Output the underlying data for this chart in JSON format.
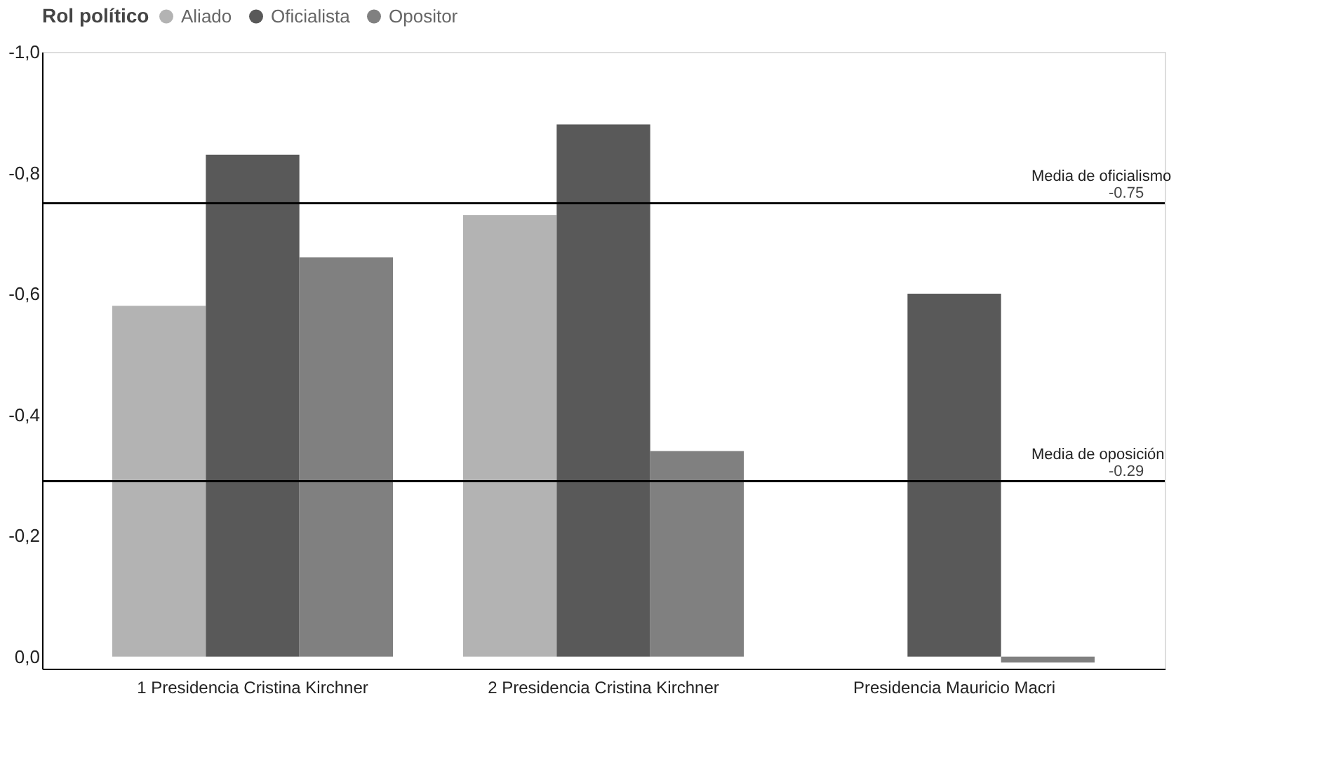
{
  "chart_data": {
    "type": "bar",
    "categories": [
      "1 Presidencia Cristina Kirchner",
      "2 Presidencia Cristina Kirchner",
      "Presidencia Mauricio Macri"
    ],
    "series": [
      {
        "name": "Aliado",
        "color": "#b3b3b3",
        "values": [
          -0.58,
          -0.73,
          null
        ]
      },
      {
        "name": "Oficialista",
        "color": "#595959",
        "values": [
          -0.83,
          -0.88,
          -0.6
        ]
      },
      {
        "name": "Opositor",
        "color": "#808080",
        "values": [
          -0.66,
          -0.34,
          0.01
        ]
      }
    ],
    "legend_title": "Rol político",
    "legend": "top",
    "ylim": [
      0.02,
      -1.0
    ],
    "yticks": [
      {
        "value": 0,
        "label": "0,0"
      },
      {
        "value": -0.2,
        "label": "-0,2"
      },
      {
        "value": -0.4,
        "label": "-0,4"
      },
      {
        "value": -0.6,
        "label": "-0,6"
      },
      {
        "value": -0.8,
        "label": "-0,8"
      },
      {
        "value": -1.0,
        "label": "-1,0"
      }
    ],
    "grid": false,
    "ref_lines": [
      {
        "axis": "y",
        "value": -0.75,
        "label": "Media de oficialismo",
        "color": "#000000"
      },
      {
        "axis": "y",
        "value": -0.29,
        "label": "Media de oposición",
        "color": "#000000"
      }
    ],
    "annotations": [
      {
        "text": "-0.75",
        "y": -0.75
      },
      {
        "text": "-0.29",
        "y": -0.29
      }
    ]
  }
}
